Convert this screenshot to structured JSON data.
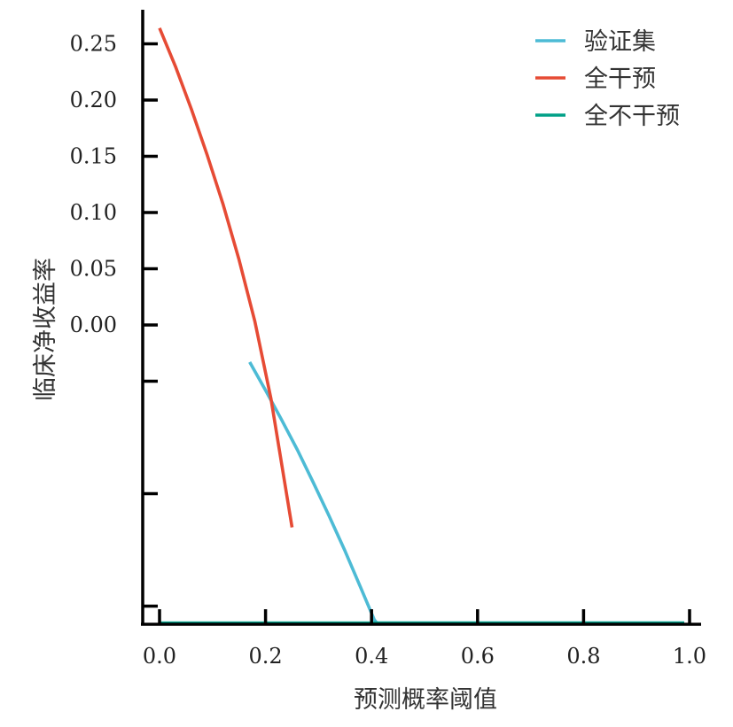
{
  "chart_data": {
    "type": "line",
    "title": "",
    "xlabel": "预测概率阈值",
    "ylabel": "临床净收益率",
    "xlim": [
      0.0,
      1.0
    ],
    "ylim": [
      -0.25,
      0.28
    ],
    "grid": false,
    "legend_position": "top-right",
    "x_ticks": [
      {
        "value": 0.0,
        "label": "0.0"
      },
      {
        "value": 0.2,
        "label": "0.2"
      },
      {
        "value": 0.4,
        "label": "0.4"
      },
      {
        "value": 0.6,
        "label": "0.6"
      },
      {
        "value": 0.8,
        "label": "0.8"
      },
      {
        "value": 1.0,
        "label": "1.0"
      }
    ],
    "y_ticks": [
      {
        "value": 0.25,
        "label": "0.25"
      },
      {
        "value": 0.2,
        "label": "0.20"
      },
      {
        "value": 0.15,
        "label": "0.15"
      },
      {
        "value": 0.1,
        "label": "0.10"
      },
      {
        "value": 0.05,
        "label": "0.05"
      },
      {
        "value": 0.0,
        "label": "0.00"
      },
      {
        "value": -0.05,
        "label": ""
      },
      {
        "value": -0.15,
        "label": ""
      },
      {
        "value": -0.25,
        "label": ""
      }
    ],
    "series": [
      {
        "name": "验证集",
        "color": "#4dbbd5",
        "x": [
          0.17,
          0.2,
          0.23,
          0.26,
          0.29,
          0.32,
          0.35,
          0.38,
          0.405,
          0.41,
          0.5,
          0.6,
          0.7,
          0.8,
          0.9,
          0.99
        ],
        "y": [
          -0.033,
          -0.058,
          -0.084,
          -0.111,
          -0.14,
          -0.17,
          -0.201,
          -0.234,
          -0.262,
          -0.265,
          -0.265,
          -0.265,
          -0.265,
          -0.265,
          -0.265,
          -0.265
        ]
      },
      {
        "name": "全干预",
        "color": "#e64b35",
        "x": [
          0.0,
          0.03,
          0.06,
          0.09,
          0.12,
          0.15,
          0.18,
          0.21,
          0.25
        ],
        "y": [
          0.264,
          0.23,
          0.192,
          0.151,
          0.107,
          0.058,
          0.003,
          -0.065,
          -0.18
        ]
      },
      {
        "name": "全不干预",
        "color": "#00a087",
        "x": [
          0.0,
          0.99
        ],
        "y": [
          -0.265,
          -0.265
        ]
      }
    ]
  }
}
